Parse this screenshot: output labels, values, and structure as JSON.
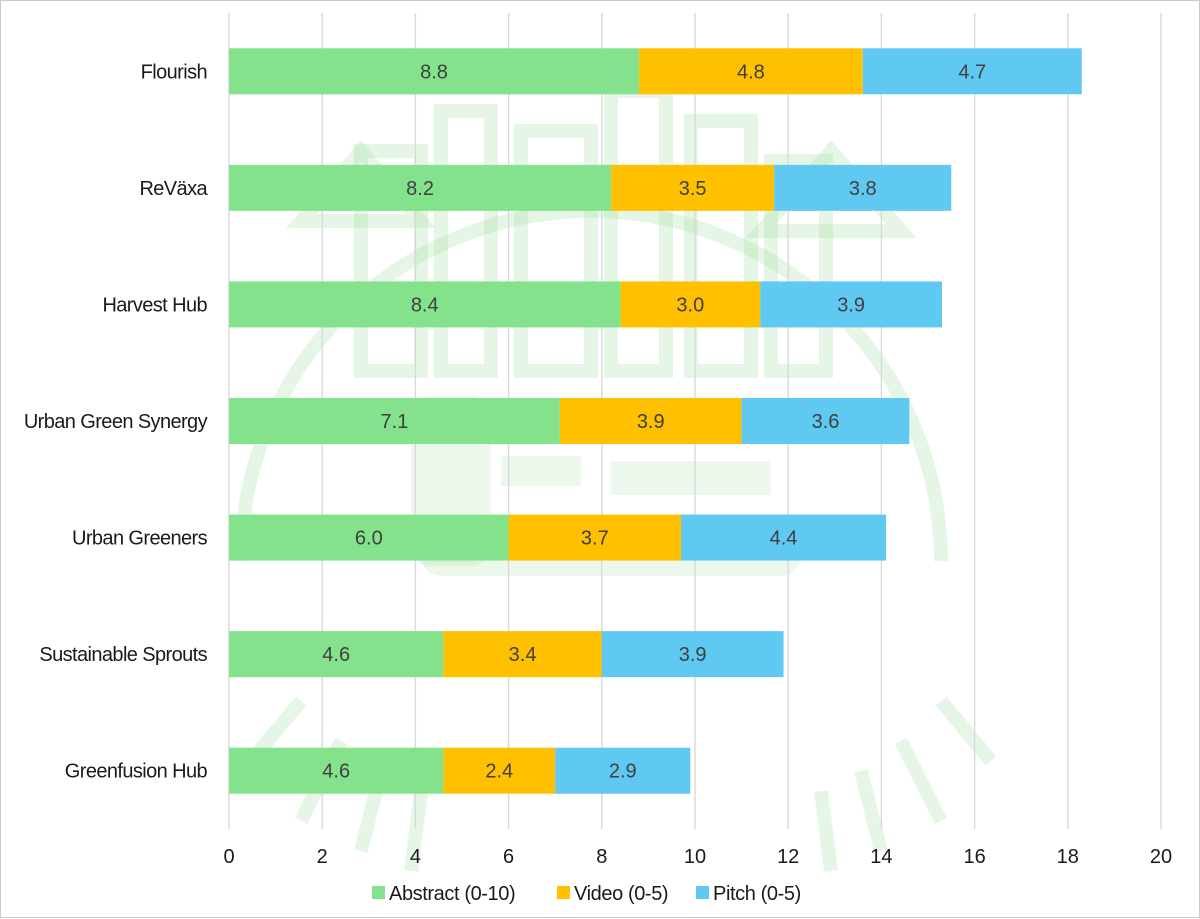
{
  "chart_data": {
    "type": "bar",
    "orientation": "horizontal",
    "stacked": true,
    "categories": [
      "Flourish",
      "ReVäxa",
      "Harvest Hub",
      "Urban Green Synergy",
      "Urban Greeners",
      "Sustainable Sprouts",
      "Greenfusion Hub"
    ],
    "series": [
      {
        "name": "Abstract (0-10)",
        "color": "#84e28c",
        "values": [
          8.8,
          8.2,
          8.4,
          7.1,
          6.0,
          4.6,
          4.6
        ],
        "labels": [
          "8.8",
          "8.2",
          "8.4",
          "7.1",
          "6.0",
          "4.6",
          "4.6"
        ]
      },
      {
        "name": "Video (0-5)",
        "color": "#ffc000",
        "values": [
          4.8,
          3.5,
          3.0,
          3.9,
          3.7,
          3.4,
          2.4
        ],
        "labels": [
          "4.8",
          "3.5",
          "3.0",
          "3.9",
          "3.7",
          "3.4",
          "2.4"
        ]
      },
      {
        "name": "Pitch (0-5)",
        "color": "#5fc9f1",
        "values": [
          4.7,
          3.8,
          3.9,
          3.6,
          4.4,
          3.9,
          2.9
        ],
        "labels": [
          "4.7",
          "3.8",
          "3.9",
          "3.6",
          "4.4",
          "3.9",
          "2.9"
        ]
      }
    ],
    "title": "",
    "xlabel": "",
    "ylabel": "",
    "xlim": [
      0,
      20
    ],
    "x_ticks": [
      "0",
      "2",
      "4",
      "6",
      "8",
      "10",
      "12",
      "14",
      "16",
      "18",
      "20"
    ],
    "grid": "vertical",
    "legend": "bottom",
    "watermark_color": "#8fd68f"
  }
}
